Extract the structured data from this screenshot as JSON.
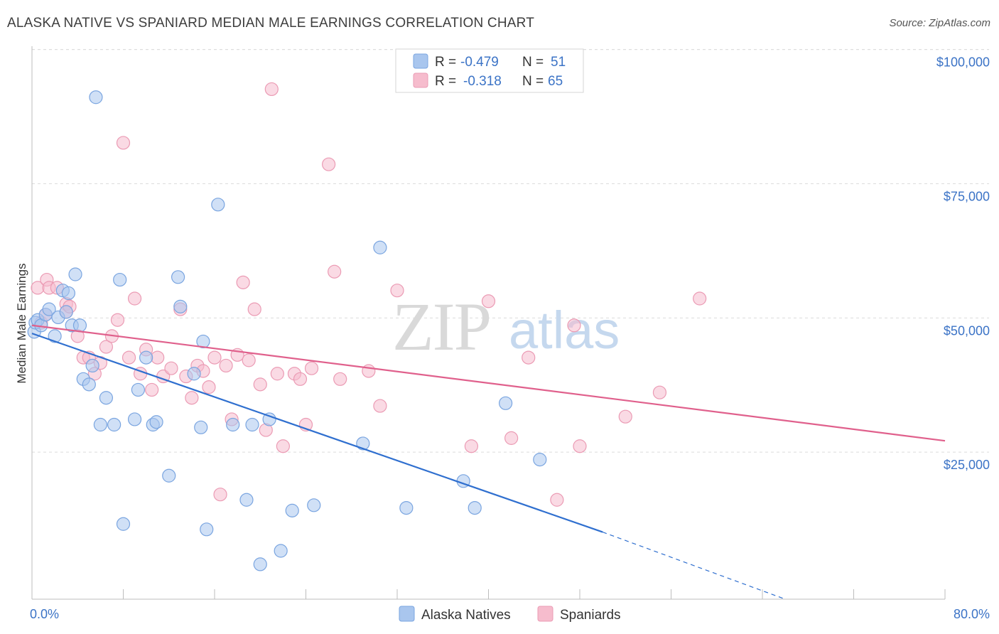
{
  "title": "ALASKA NATIVE VS SPANIARD MEDIAN MALE EARNINGS CORRELATION CHART",
  "source": "Source: ZipAtlas.com",
  "watermark": {
    "zip": "ZIP",
    "atlas": "atlas"
  },
  "colors": {
    "blue_fill": "#a9c6ee",
    "blue_stroke": "#7aa5e0",
    "blue_line": "#2f6fcf",
    "pink_fill": "#f6bccd",
    "pink_stroke": "#eb9bb4",
    "pink_line": "#e0608c",
    "tick_text": "#3b73c6",
    "grid": "#dcdcdc"
  },
  "legend": {
    "rows": [
      {
        "r_label": "R =",
        "r_value": "-0.479",
        "n_label": "N =",
        "n_value": "51"
      },
      {
        "r_label": "R =",
        "r_value": "-0.318",
        "n_label": "N =",
        "n_value": "65"
      }
    ]
  },
  "chart_data": {
    "type": "scatter",
    "title": "ALASKA NATIVE VS SPANIARD MEDIAN MALE EARNINGS CORRELATION CHART",
    "xlabel": "",
    "ylabel": "Median Male Earnings",
    "xlim": [
      0,
      80
    ],
    "ylim": [
      0,
      103000
    ],
    "x_tick_labels": [
      "0.0%",
      "80.0%"
    ],
    "y_tick_labels": [
      "$100,000",
      "$75,000",
      "$50,000",
      "$25,000"
    ],
    "y_tick_values": [
      100000,
      75000,
      50000,
      25000
    ],
    "grid": "horizontal dashed",
    "legend_position": "top-center",
    "series": [
      {
        "name": "Alaska Natives",
        "color": "#a9c6ee",
        "trend": {
          "x0": 0,
          "y0": 49500,
          "x1": 50,
          "y1": 12500,
          "dashed_to_x": 66,
          "dashed_to_y": 0
        },
        "points": [
          [
            0.2,
            49800
          ],
          [
            0.3,
            51500
          ],
          [
            0.5,
            52000
          ],
          [
            0.8,
            51000
          ],
          [
            1.2,
            53000
          ],
          [
            1.5,
            54000
          ],
          [
            2.0,
            49000
          ],
          [
            2.3,
            52500
          ],
          [
            2.7,
            57500
          ],
          [
            3.0,
            53500
          ],
          [
            3.2,
            57000
          ],
          [
            3.5,
            51000
          ],
          [
            3.8,
            60500
          ],
          [
            4.2,
            51000
          ],
          [
            4.5,
            41000
          ],
          [
            5.0,
            40000
          ],
          [
            5.3,
            43500
          ],
          [
            5.6,
            93500
          ],
          [
            6.0,
            32500
          ],
          [
            6.5,
            37500
          ],
          [
            7.2,
            32500
          ],
          [
            7.7,
            59500
          ],
          [
            8.0,
            14000
          ],
          [
            9.0,
            33500
          ],
          [
            9.3,
            39000
          ],
          [
            10.0,
            45000
          ],
          [
            10.6,
            32500
          ],
          [
            10.9,
            33000
          ],
          [
            12.0,
            23000
          ],
          [
            12.8,
            60000
          ],
          [
            13.0,
            54500
          ],
          [
            14.2,
            42000
          ],
          [
            14.8,
            32000
          ],
          [
            15.0,
            48000
          ],
          [
            15.3,
            13000
          ],
          [
            16.3,
            73500
          ],
          [
            17.6,
            32500
          ],
          [
            18.8,
            18500
          ],
          [
            19.3,
            32500
          ],
          [
            20.0,
            6500
          ],
          [
            20.8,
            33500
          ],
          [
            21.8,
            9000
          ],
          [
            22.8,
            16500
          ],
          [
            24.7,
            17500
          ],
          [
            29.0,
            29000
          ],
          [
            30.5,
            65500
          ],
          [
            32.8,
            17000
          ],
          [
            37.8,
            22000
          ],
          [
            38.8,
            17000
          ],
          [
            41.5,
            36500
          ],
          [
            44.5,
            26000
          ]
        ]
      },
      {
        "name": "Spaniards",
        "color": "#f6bccd",
        "trend": {
          "x0": 0,
          "y0": 51000,
          "x1": 80,
          "y1": 29500
        },
        "points": [
          [
            0.5,
            58000
          ],
          [
            0.8,
            51500
          ],
          [
            1.2,
            53000
          ],
          [
            1.3,
            59500
          ],
          [
            1.5,
            58000
          ],
          [
            2.2,
            58000
          ],
          [
            3.0,
            55000
          ],
          [
            3.0,
            53500
          ],
          [
            3.3,
            54500
          ],
          [
            4.0,
            49000
          ],
          [
            4.5,
            45000
          ],
          [
            5.0,
            45000
          ],
          [
            5.5,
            42000
          ],
          [
            6.0,
            44000
          ],
          [
            6.5,
            47000
          ],
          [
            7.0,
            49000
          ],
          [
            7.5,
            52000
          ],
          [
            8.0,
            85000
          ],
          [
            8.5,
            45000
          ],
          [
            9.0,
            56000
          ],
          [
            9.5,
            42000
          ],
          [
            10.0,
            46500
          ],
          [
            10.5,
            39000
          ],
          [
            11.0,
            45000
          ],
          [
            11.5,
            41500
          ],
          [
            12.2,
            43000
          ],
          [
            13.0,
            54000
          ],
          [
            13.5,
            41500
          ],
          [
            14.0,
            37500
          ],
          [
            14.5,
            43500
          ],
          [
            15.0,
            42500
          ],
          [
            15.5,
            39500
          ],
          [
            16.0,
            45000
          ],
          [
            16.5,
            19500
          ],
          [
            17.0,
            43500
          ],
          [
            17.5,
            33500
          ],
          [
            18.0,
            45500
          ],
          [
            18.5,
            59000
          ],
          [
            19.0,
            44500
          ],
          [
            19.5,
            54000
          ],
          [
            20.0,
            40000
          ],
          [
            20.5,
            31500
          ],
          [
            21.0,
            95000
          ],
          [
            21.5,
            42000
          ],
          [
            22.0,
            28500
          ],
          [
            23.0,
            42000
          ],
          [
            23.5,
            41000
          ],
          [
            24.0,
            32500
          ],
          [
            24.5,
            43000
          ],
          [
            26.0,
            81000
          ],
          [
            26.5,
            61000
          ],
          [
            27.0,
            41000
          ],
          [
            29.5,
            42500
          ],
          [
            30.5,
            36000
          ],
          [
            32.0,
            57500
          ],
          [
            38.5,
            28500
          ],
          [
            40.0,
            55500
          ],
          [
            42.0,
            30000
          ],
          [
            43.5,
            45000
          ],
          [
            46.0,
            18500
          ],
          [
            47.5,
            51000
          ],
          [
            48.0,
            28500
          ],
          [
            52.0,
            34000
          ],
          [
            55.0,
            38500
          ],
          [
            58.5,
            56000
          ]
        ]
      }
    ]
  },
  "bottom_legend": [
    "Alaska Natives",
    "Spaniards"
  ]
}
